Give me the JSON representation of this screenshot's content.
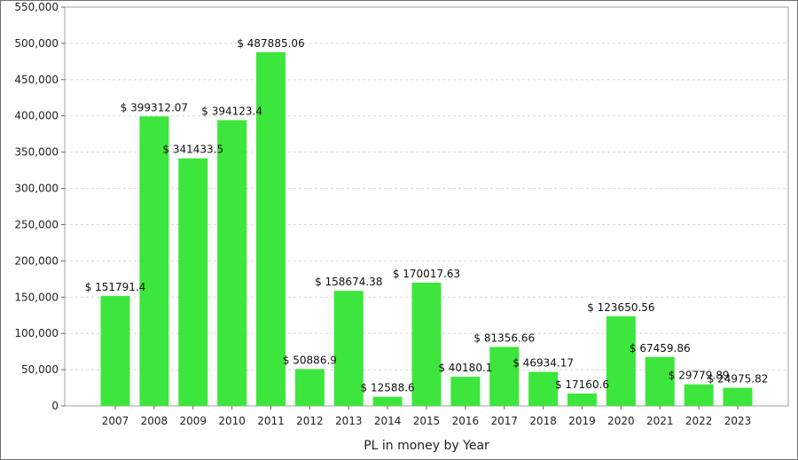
{
  "chart_data": {
    "type": "bar",
    "title": "",
    "xlabel": "PL in money by Year",
    "ylabel": "",
    "categories": [
      "2007",
      "2008",
      "2009",
      "2010",
      "2011",
      "2012",
      "2013",
      "2014",
      "2015",
      "2016",
      "2017",
      "2018",
      "2019",
      "2020",
      "2021",
      "2022",
      "2023"
    ],
    "values": [
      151791.4,
      399312.07,
      341433.5,
      394123.4,
      487885.06,
      50886.9,
      158674.38,
      12588.6,
      170017.63,
      40180.1,
      81356.66,
      46934.17,
      17160.6,
      123650.56,
      67459.86,
      29779.89,
      24975.82
    ],
    "data_labels": [
      "$ 151791.4",
      "$ 399312.07",
      "$ 341433.5",
      "$ 394123.4",
      "$ 487885.06",
      "$ 50886.9",
      "$ 158674.38",
      "$ 12588.6",
      "$ 170017.63",
      "$ 40180.1",
      "$ 81356.66",
      "$ 46934.17",
      "$ 17160.6",
      "$ 123650.56",
      "$ 67459.86",
      "$ 29779.89",
      "$ 24975.82"
    ],
    "ylim": [
      0,
      550000
    ],
    "yticks": [
      0,
      50000,
      100000,
      150000,
      200000,
      250000,
      300000,
      350000,
      400000,
      450000,
      500000,
      550000
    ],
    "ytick_labels": [
      "0",
      "50,000",
      "100,000",
      "150,000",
      "200,000",
      "250,000",
      "300,000",
      "350,000",
      "400,000",
      "450,000",
      "500,000",
      "550,000"
    ],
    "grid": true,
    "legend": "none",
    "bar_color": "#3de63d",
    "plot_border_color": "#a0a0a0",
    "grid_color": "#d8d8d8"
  }
}
